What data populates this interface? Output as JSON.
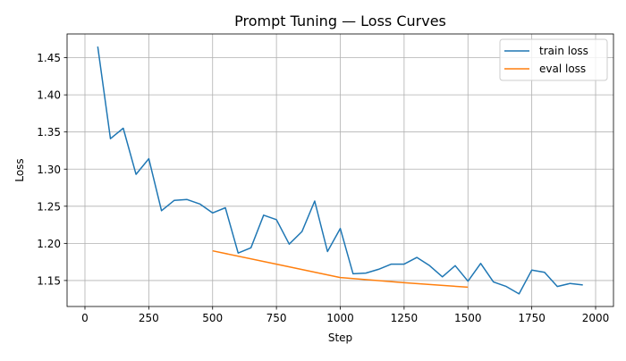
{
  "chart_data": {
    "type": "line",
    "title": "Prompt Tuning — Loss Curves",
    "xlabel": "Step",
    "ylabel": "Loss",
    "xlim": [
      -70,
      2070
    ],
    "ylim": [
      1.115,
      1.482
    ],
    "xticks": [
      0,
      250,
      500,
      750,
      1000,
      1250,
      1500,
      1750,
      2000
    ],
    "xtick_labels": [
      "0",
      "250",
      "500",
      "750",
      "1000",
      "1250",
      "1500",
      "1750",
      "2000"
    ],
    "yticks": [
      1.15,
      1.2,
      1.25,
      1.3,
      1.35,
      1.4,
      1.45
    ],
    "ytick_labels": [
      "1.15",
      "1.20",
      "1.25",
      "1.30",
      "1.35",
      "1.40",
      "1.45"
    ],
    "grid": true,
    "legend_position": "top-right",
    "series": [
      {
        "name": "train loss",
        "color": "#1f77b4",
        "x": [
          50,
          100,
          150,
          200,
          250,
          300,
          350,
          400,
          450,
          500,
          550,
          600,
          650,
          700,
          750,
          800,
          850,
          900,
          950,
          1000,
          1050,
          1100,
          1150,
          1200,
          1250,
          1300,
          1350,
          1400,
          1450,
          1500,
          1550,
          1600,
          1650,
          1700,
          1750,
          1800,
          1850,
          1900,
          1950
        ],
        "y": [
          1.465,
          1.341,
          1.355,
          1.293,
          1.314,
          1.244,
          1.258,
          1.259,
          1.253,
          1.241,
          1.248,
          1.187,
          1.194,
          1.238,
          1.232,
          1.199,
          1.216,
          1.257,
          1.189,
          1.22,
          1.159,
          1.16,
          1.165,
          1.172,
          1.172,
          1.181,
          1.17,
          1.155,
          1.17,
          1.149,
          1.173,
          1.148,
          1.142,
          1.132,
          1.164,
          1.161,
          1.142,
          1.146,
          1.144
        ]
      },
      {
        "name": "eval loss",
        "color": "#ff7f0e",
        "x": [
          500,
          750,
          1000,
          1250,
          1500
        ],
        "y": [
          1.19,
          1.172,
          1.154,
          1.147,
          1.141
        ]
      }
    ]
  }
}
